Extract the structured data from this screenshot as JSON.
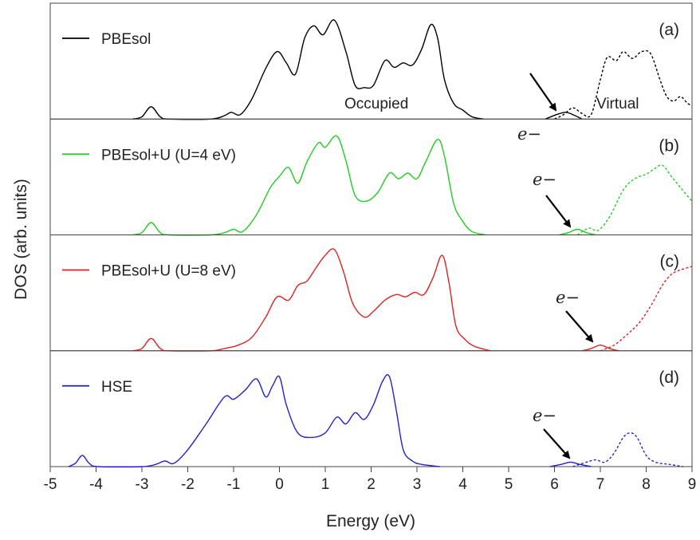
{
  "chart_data": {
    "type": "line",
    "xlabel": "Energy (eV)",
    "ylabel": "DOS (arb. units)",
    "xlim": [
      -5,
      9
    ],
    "x_ticks": [
      "-5",
      "-4",
      "-3",
      "-2",
      "-1",
      "0",
      "1",
      "2",
      "3",
      "4",
      "5",
      "6",
      "7",
      "8",
      "9"
    ],
    "grid": false,
    "panels": [
      {
        "tag": "(a)",
        "legend": "PBEsol",
        "color": "#000000",
        "occupied_label": "Occupied",
        "virtual_label": "Virtual",
        "defect_label": "e−",
        "occupied": [
          [
            -3.2,
            0
          ],
          [
            -3.0,
            0.02
          ],
          [
            -2.8,
            0.11
          ],
          [
            -2.6,
            0.02
          ],
          [
            -2.4,
            0
          ],
          [
            -1.5,
            0
          ],
          [
            -1.2,
            0.03
          ],
          [
            -1.05,
            0.06
          ],
          [
            -0.85,
            0.04
          ],
          [
            -0.6,
            0.18
          ],
          [
            -0.3,
            0.45
          ],
          [
            -0.05,
            0.6
          ],
          [
            0.15,
            0.5
          ],
          [
            0.35,
            0.4
          ],
          [
            0.55,
            0.72
          ],
          [
            0.75,
            0.83
          ],
          [
            0.95,
            0.75
          ],
          [
            1.2,
            0.88
          ],
          [
            1.45,
            0.6
          ],
          [
            1.65,
            0.3
          ],
          [
            1.85,
            0.28
          ],
          [
            2.05,
            0.3
          ],
          [
            2.3,
            0.52
          ],
          [
            2.5,
            0.46
          ],
          [
            2.7,
            0.5
          ],
          [
            2.9,
            0.48
          ],
          [
            3.1,
            0.62
          ],
          [
            3.3,
            0.84
          ],
          [
            3.45,
            0.72
          ],
          [
            3.6,
            0.35
          ],
          [
            3.8,
            0.14
          ],
          [
            4.0,
            0.08
          ],
          [
            4.2,
            0.02
          ],
          [
            4.45,
            0
          ]
        ],
        "defect": [
          [
            5.8,
            0
          ],
          [
            6.05,
            0.04
          ],
          [
            6.25,
            0.06
          ],
          [
            6.45,
            0.03
          ],
          [
            6.6,
            0
          ]
        ],
        "virtual": [
          [
            6.0,
            0
          ],
          [
            6.2,
            0.04
          ],
          [
            6.4,
            0.1
          ],
          [
            6.6,
            0.05
          ],
          [
            6.8,
            0.04
          ],
          [
            7.0,
            0.35
          ],
          [
            7.15,
            0.55
          ],
          [
            7.35,
            0.52
          ],
          [
            7.5,
            0.6
          ],
          [
            7.7,
            0.54
          ],
          [
            7.9,
            0.6
          ],
          [
            8.1,
            0.58
          ],
          [
            8.3,
            0.35
          ],
          [
            8.45,
            0.2
          ],
          [
            8.6,
            0.16
          ],
          [
            8.75,
            0.2
          ],
          [
            8.9,
            0.14
          ],
          [
            9.0,
            0.12
          ]
        ]
      },
      {
        "tag": "(b)",
        "legend": "PBEsol+U (U=4 eV)",
        "color": "#22cc22",
        "defect_label": "e−",
        "occupied": [
          [
            -3.2,
            0
          ],
          [
            -3.0,
            0.02
          ],
          [
            -2.8,
            0.11
          ],
          [
            -2.6,
            0.02
          ],
          [
            -2.4,
            0
          ],
          [
            -1.5,
            0
          ],
          [
            -1.2,
            0.02
          ],
          [
            -1.0,
            0.05
          ],
          [
            -0.8,
            0.03
          ],
          [
            -0.5,
            0.18
          ],
          [
            -0.2,
            0.42
          ],
          [
            0.0,
            0.52
          ],
          [
            0.2,
            0.6
          ],
          [
            0.4,
            0.46
          ],
          [
            0.6,
            0.65
          ],
          [
            0.85,
            0.82
          ],
          [
            1.0,
            0.78
          ],
          [
            1.25,
            0.88
          ],
          [
            1.45,
            0.66
          ],
          [
            1.65,
            0.35
          ],
          [
            1.9,
            0.3
          ],
          [
            2.15,
            0.38
          ],
          [
            2.4,
            0.55
          ],
          [
            2.6,
            0.5
          ],
          [
            2.8,
            0.55
          ],
          [
            3.0,
            0.5
          ],
          [
            3.2,
            0.66
          ],
          [
            3.45,
            0.85
          ],
          [
            3.6,
            0.7
          ],
          [
            3.8,
            0.28
          ],
          [
            4.0,
            0.12
          ],
          [
            4.2,
            0.03
          ],
          [
            4.5,
            0
          ]
        ],
        "defect": [
          [
            6.1,
            0
          ],
          [
            6.3,
            0.02
          ],
          [
            6.5,
            0.05
          ],
          [
            6.7,
            0.02
          ],
          [
            6.9,
            0
          ]
        ],
        "virtual": [
          [
            6.5,
            0
          ],
          [
            6.75,
            0.06
          ],
          [
            6.95,
            0.04
          ],
          [
            7.2,
            0.16
          ],
          [
            7.5,
            0.4
          ],
          [
            7.75,
            0.5
          ],
          [
            8.0,
            0.54
          ],
          [
            8.15,
            0.58
          ],
          [
            8.35,
            0.62
          ],
          [
            8.55,
            0.52
          ],
          [
            8.75,
            0.42
          ],
          [
            9.0,
            0.3
          ]
        ]
      },
      {
        "tag": "(c)",
        "legend": "PBEsol+U (U=8 eV)",
        "color": "#dd2222",
        "defect_label": "e−",
        "occupied": [
          [
            -3.2,
            0
          ],
          [
            -3.0,
            0.02
          ],
          [
            -2.8,
            0.11
          ],
          [
            -2.6,
            0.02
          ],
          [
            -2.4,
            0
          ],
          [
            -1.5,
            0
          ],
          [
            -1.2,
            0.02
          ],
          [
            -0.9,
            0.05
          ],
          [
            -0.6,
            0.12
          ],
          [
            -0.3,
            0.3
          ],
          [
            -0.05,
            0.48
          ],
          [
            0.2,
            0.45
          ],
          [
            0.4,
            0.58
          ],
          [
            0.6,
            0.62
          ],
          [
            0.8,
            0.74
          ],
          [
            1.0,
            0.85
          ],
          [
            1.2,
            0.9
          ],
          [
            1.4,
            0.7
          ],
          [
            1.6,
            0.42
          ],
          [
            1.85,
            0.3
          ],
          [
            2.05,
            0.35
          ],
          [
            2.3,
            0.45
          ],
          [
            2.55,
            0.5
          ],
          [
            2.75,
            0.48
          ],
          [
            2.95,
            0.52
          ],
          [
            3.15,
            0.5
          ],
          [
            3.35,
            0.65
          ],
          [
            3.55,
            0.85
          ],
          [
            3.7,
            0.6
          ],
          [
            3.85,
            0.22
          ],
          [
            4.05,
            0.1
          ],
          [
            4.25,
            0.04
          ],
          [
            4.6,
            0
          ]
        ],
        "defect": [
          [
            6.6,
            0
          ],
          [
            6.8,
            0.02
          ],
          [
            7.0,
            0.05
          ],
          [
            7.2,
            0.02
          ],
          [
            7.4,
            0
          ]
        ],
        "virtual": [
          [
            7.0,
            0
          ],
          [
            7.3,
            0.05
          ],
          [
            7.6,
            0.15
          ],
          [
            7.85,
            0.25
          ],
          [
            8.1,
            0.4
          ],
          [
            8.35,
            0.58
          ],
          [
            8.55,
            0.68
          ],
          [
            8.75,
            0.72
          ],
          [
            9.0,
            0.75
          ]
        ]
      },
      {
        "tag": "(d)",
        "legend": "HSE",
        "color": "#2222cc",
        "defect_label": "e−",
        "occupied": [
          [
            -4.6,
            0
          ],
          [
            -4.45,
            0.03
          ],
          [
            -4.3,
            0.1
          ],
          [
            -4.15,
            0.03
          ],
          [
            -3.95,
            0
          ],
          [
            -3.0,
            0
          ],
          [
            -2.7,
            0.02
          ],
          [
            -2.5,
            0.05
          ],
          [
            -2.3,
            0.03
          ],
          [
            -2.0,
            0.15
          ],
          [
            -1.6,
            0.38
          ],
          [
            -1.2,
            0.62
          ],
          [
            -1.0,
            0.6
          ],
          [
            -0.75,
            0.68
          ],
          [
            -0.5,
            0.78
          ],
          [
            -0.3,
            0.62
          ],
          [
            -0.15,
            0.72
          ],
          [
            0.0,
            0.8
          ],
          [
            0.15,
            0.55
          ],
          [
            0.4,
            0.3
          ],
          [
            0.7,
            0.26
          ],
          [
            1.0,
            0.3
          ],
          [
            1.25,
            0.44
          ],
          [
            1.45,
            0.38
          ],
          [
            1.65,
            0.48
          ],
          [
            1.85,
            0.42
          ],
          [
            2.05,
            0.55
          ],
          [
            2.25,
            0.76
          ],
          [
            2.4,
            0.8
          ],
          [
            2.55,
            0.5
          ],
          [
            2.7,
            0.15
          ],
          [
            2.9,
            0.05
          ],
          [
            3.1,
            0.02
          ],
          [
            3.5,
            0
          ]
        ],
        "defect": [
          [
            5.9,
            0
          ],
          [
            6.15,
            0.02
          ],
          [
            6.35,
            0.04
          ],
          [
            6.55,
            0.02
          ],
          [
            6.8,
            0
          ]
        ],
        "virtual": [
          [
            6.4,
            0
          ],
          [
            6.7,
            0.04
          ],
          [
            6.9,
            0.06
          ],
          [
            7.1,
            0.04
          ],
          [
            7.3,
            0.12
          ],
          [
            7.5,
            0.26
          ],
          [
            7.65,
            0.3
          ],
          [
            7.8,
            0.26
          ],
          [
            8.0,
            0.1
          ],
          [
            8.2,
            0.04
          ],
          [
            8.5,
            0.02
          ],
          [
            8.8,
            0
          ]
        ]
      }
    ]
  }
}
